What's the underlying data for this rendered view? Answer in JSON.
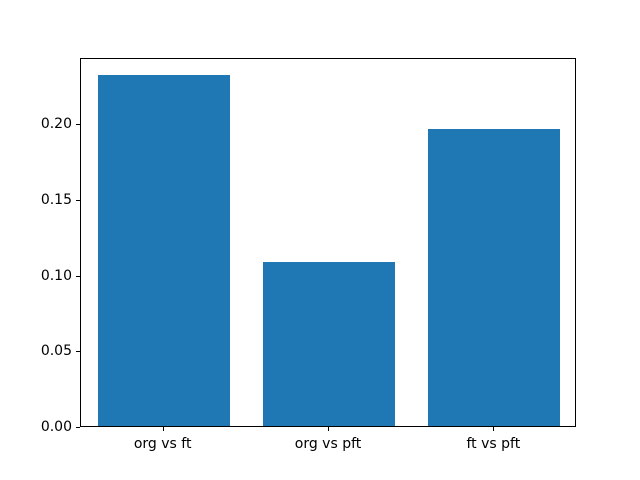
{
  "figure": {
    "background_color": "#ffffff",
    "bar_color": "#1f77b4",
    "axis_color": "#000000",
    "text_color": "#000000"
  },
  "chart_data": {
    "type": "bar",
    "categories": [
      "org vs ft",
      "org vs pft",
      "ft vs pft"
    ],
    "values": [
      0.232,
      0.108,
      0.196
    ],
    "title": "",
    "xlabel": "",
    "ylabel": "",
    "ylim": [
      0,
      0.2436
    ],
    "yticks": [
      0.0,
      0.05,
      0.1,
      0.15,
      0.2
    ],
    "ytick_labels": [
      "0.00",
      "0.05",
      "0.10",
      "0.15",
      "0.20"
    ],
    "bar_width_fraction": 0.8,
    "grid": false,
    "legend": null
  }
}
